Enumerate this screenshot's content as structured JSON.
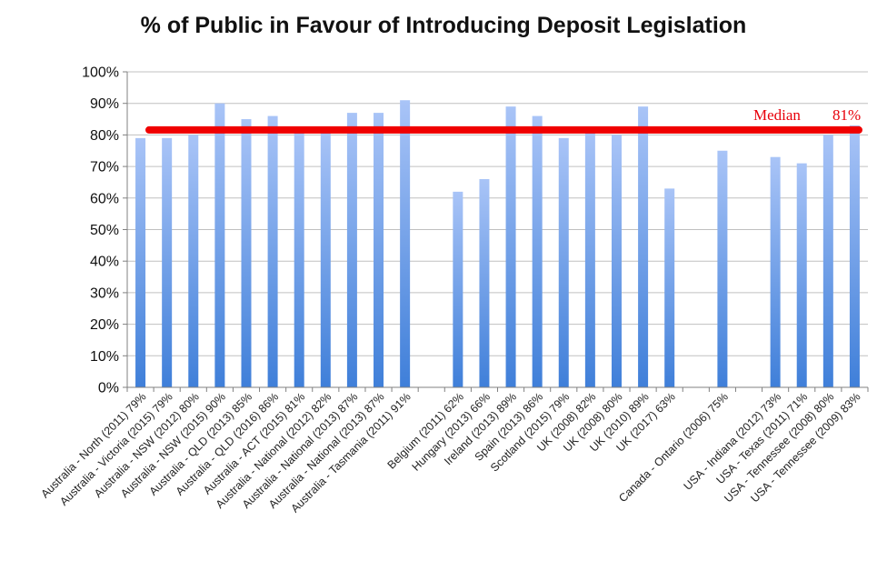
{
  "chart_data": {
    "type": "bar",
    "title": "% of Public in Favour of Introducing Deposit Legislation",
    "xlabel": "",
    "ylabel": "",
    "ylim": [
      0,
      100
    ],
    "y_ticks": [
      "0%",
      "10%",
      "20%",
      "30%",
      "40%",
      "50%",
      "60%",
      "70%",
      "80%",
      "90%",
      "100%"
    ],
    "grid": true,
    "legend": "none",
    "categories": [
      "Australia - North (2011) 79%",
      "Australia - Victoria (2015) 79%",
      "Australia - NSW (2012) 80%",
      "Australia - NSW (2015) 90%",
      "Australia - QLD (2013) 85%",
      "Australia - QLD (2016) 86%",
      "Australia - ACT (2015) 81%",
      "Australia - National (2012) 82%",
      "Australia - National (2013) 87%",
      "Australia - National (2013) 87%",
      "Australia - Tasmania (2011) 91%",
      "",
      "Belgium (2011) 62%",
      "Hungary (2013) 66%",
      "Ireland (2013) 89%",
      "Spain (2013) 86%",
      "Scotland (2015) 79%",
      "UK (2008) 82%",
      "UK (2008) 80%",
      "UK (2010) 89%",
      "UK (2017) 63%",
      "",
      "Canada - Ontario (2006) 75%",
      "",
      "USA - Indiana (2012) 73%",
      "USA - Texas (2011) 71%",
      "USA - Tennessee (2008) 80%",
      "USA - Tennessee (2009) 83%"
    ],
    "values": [
      79,
      79,
      80,
      90,
      85,
      86,
      81,
      82,
      87,
      87,
      91,
      null,
      62,
      66,
      89,
      86,
      79,
      82,
      80,
      89,
      63,
      null,
      75,
      null,
      73,
      71,
      80,
      83
    ],
    "median": {
      "label": "Median",
      "value_label": "81%",
      "value": 81
    },
    "colors": {
      "bar_top": "#a9c4f7",
      "bar_bottom": "#3f7fd9",
      "median_line": "#f00000",
      "median_text": "#e8000b",
      "grid": "#c0c0c0",
      "axis": "#808080"
    }
  }
}
